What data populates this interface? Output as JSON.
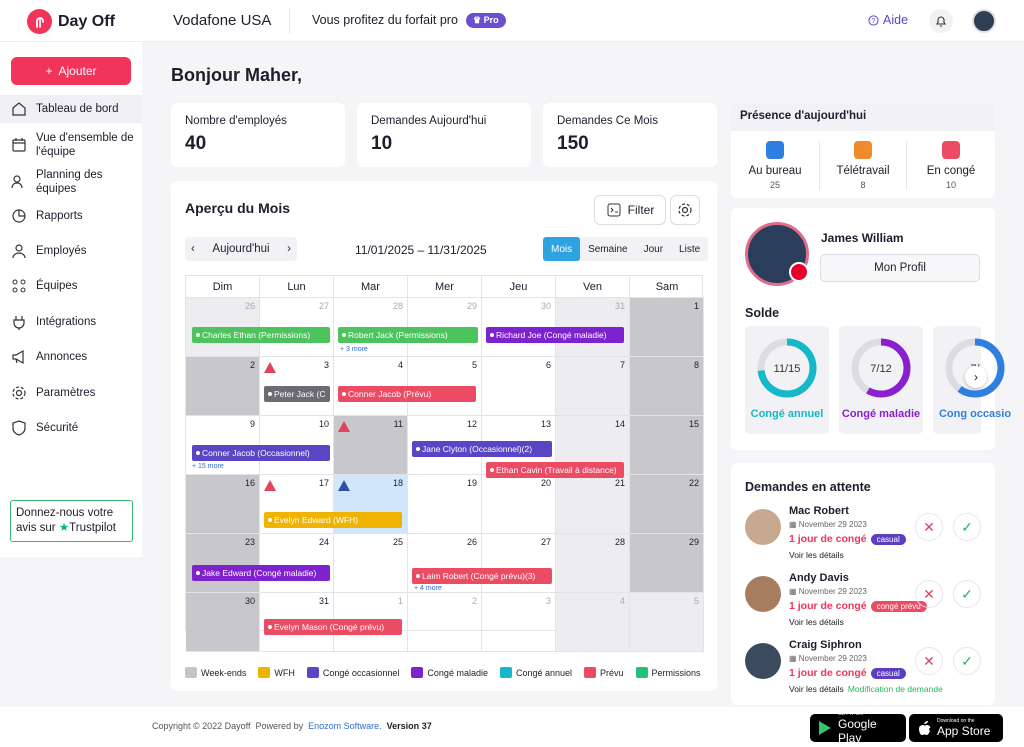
{
  "header": {
    "app_name": "Day Off",
    "company": "Vodafone USA",
    "plan_text": "Vous profitez du forfait pro",
    "pro_badge": "Pro",
    "help": "Aide"
  },
  "sidebar": {
    "add_label": "Ajouter",
    "items": [
      {
        "label": "Tableau de bord",
        "icon": "home-icon"
      },
      {
        "label": "Vue d'ensemble de l'équipe",
        "icon": "calendar-icon"
      },
      {
        "label": "Planning des équipes",
        "icon": "users-schedule-icon"
      },
      {
        "label": "Rapports",
        "icon": "pie-chart-icon"
      },
      {
        "label": "Employés",
        "icon": "user-icon"
      },
      {
        "label": "Équipes",
        "icon": "team-icon"
      },
      {
        "label": "Intégrations",
        "icon": "plug-icon"
      },
      {
        "label": "Annonces",
        "icon": "megaphone-icon"
      },
      {
        "label": "Paramètres",
        "icon": "gear-icon"
      },
      {
        "label": "Sécurité",
        "icon": "shield-icon"
      }
    ],
    "trustpilot": {
      "line1": "Donnez-nous votre",
      "line2": "avis sur",
      "brand": "Trustpilot"
    }
  },
  "greeting": "Bonjour Maher,",
  "stats": [
    {
      "label": "Nombre d'employés",
      "value": "40"
    },
    {
      "label": "Demandes Aujourd'hui",
      "value": "10"
    },
    {
      "label": "Demandes Ce Mois",
      "value": "150"
    }
  ],
  "calendar": {
    "title": "Aperçu du Mois",
    "filter": "Filter",
    "today": "Aujourd'hui",
    "range": "11/01/2025 – 11/31/2025",
    "views": [
      "Mois",
      "Semaine",
      "Jour",
      "Liste"
    ],
    "weekdays": [
      "Dim",
      "Lun",
      "Mar",
      "Mer",
      "Jeu",
      "Ven",
      "Sam"
    ],
    "weeks": [
      [
        "26",
        "27",
        "28",
        "29",
        "30",
        "31",
        "1"
      ],
      [
        "2",
        "3",
        "4",
        "5",
        "6",
        "7",
        "8"
      ],
      [
        "9",
        "10",
        "11",
        "12",
        "13",
        "14",
        "15"
      ],
      [
        "16",
        "17",
        "18",
        "19",
        "20",
        "21",
        "22"
      ],
      [
        "23",
        "24",
        "25",
        "26",
        "27",
        "28",
        "29"
      ],
      [
        "30",
        "31",
        "1",
        "2",
        "3",
        "4",
        "5"
      ]
    ],
    "events": [
      {
        "label": "Charles Ethan (Permissions)"
      },
      {
        "label": "Robert Jack (Permissions)"
      },
      {
        "label": "Richard Joe (Congé maladie)"
      },
      {
        "label": "Peter Jack (C"
      },
      {
        "label": "Conner Jacob (Prévu)"
      },
      {
        "label": "Conner Jacob (Occasionnel)"
      },
      {
        "label": "Jane Clyton (Occasionnel)(2)"
      },
      {
        "label": "Ethan Cavin (Travail à distance)"
      },
      {
        "label": "Evelyn Edward (WFH)"
      },
      {
        "label": "Jake Edward (Congé maladie)"
      },
      {
        "label": "Laim Robert (Congé prévu)(3)"
      },
      {
        "label": "Evelyn Mason (Congé prévu)"
      }
    ],
    "more": [
      "+ 3 more",
      "+ 15 more",
      "+ 4 more"
    ],
    "legend": [
      {
        "label": "Week-ends",
        "color": "#c4c4c8"
      },
      {
        "label": "WFH",
        "color": "#f0b400"
      },
      {
        "label": "Congé occasionnel",
        "color": "#5a45c4"
      },
      {
        "label": "Congé maladie",
        "color": "#7e22ce"
      },
      {
        "label": "Congé annuel",
        "color": "#14b8c8"
      },
      {
        "label": "Prévu",
        "color": "#ec4b64"
      },
      {
        "label": "Permissions",
        "color": "#22c07a"
      }
    ]
  },
  "presence": {
    "title": "Présence d'aujourd'hui",
    "items": [
      {
        "label": "Au bureau",
        "count": "25"
      },
      {
        "label": "Télétravail",
        "count": "8"
      },
      {
        "label": "En congé",
        "count": "10"
      }
    ]
  },
  "profile": {
    "name": "James William",
    "button": "Mon Profil",
    "solde_title": "Solde",
    "balances": [
      {
        "value": "11/15",
        "label": "Congé annuel",
        "color": "#14b8c8",
        "fraction": 0.733
      },
      {
        "value": "7/12",
        "label": "Congé maladie",
        "color": "#8a1fd0",
        "fraction": 0.583
      },
      {
        "value": "7/",
        "label": "Cong occasio",
        "color": "#2f7fe0",
        "fraction": 0.6
      }
    ]
  },
  "pending": {
    "title": "Demandes en attente",
    "requests": [
      {
        "name": "Mac Robert",
        "date": "November 29 2023",
        "amount": "1 jour de congé",
        "tag": "casual",
        "tag_color": "#5b3fc0",
        "details": "Voir les détails",
        "extra": ""
      },
      {
        "name": "Andy Davis",
        "date": "November 29 2023",
        "amount": "1 jour de congé",
        "tag": "congé prévu",
        "tag_color": "#ec4b64",
        "details": "Voir les détails",
        "extra": ""
      },
      {
        "name": "Craig Siphron",
        "date": "November 29 2023",
        "amount": "1 jour de congé",
        "tag": "casual",
        "tag_color": "#5b3fc0",
        "details": "Voir les détails",
        "extra": "Modification de demande"
      }
    ]
  },
  "footer": {
    "copyright": "Copyright © 2022 Dayoff",
    "powered": "Powered by",
    "company": "Enozom Software.",
    "version_label": "Version",
    "version": "37",
    "google_small": "GET IT ON",
    "google": "Google Play",
    "apple_small": "Download on the",
    "apple": "App Store"
  }
}
